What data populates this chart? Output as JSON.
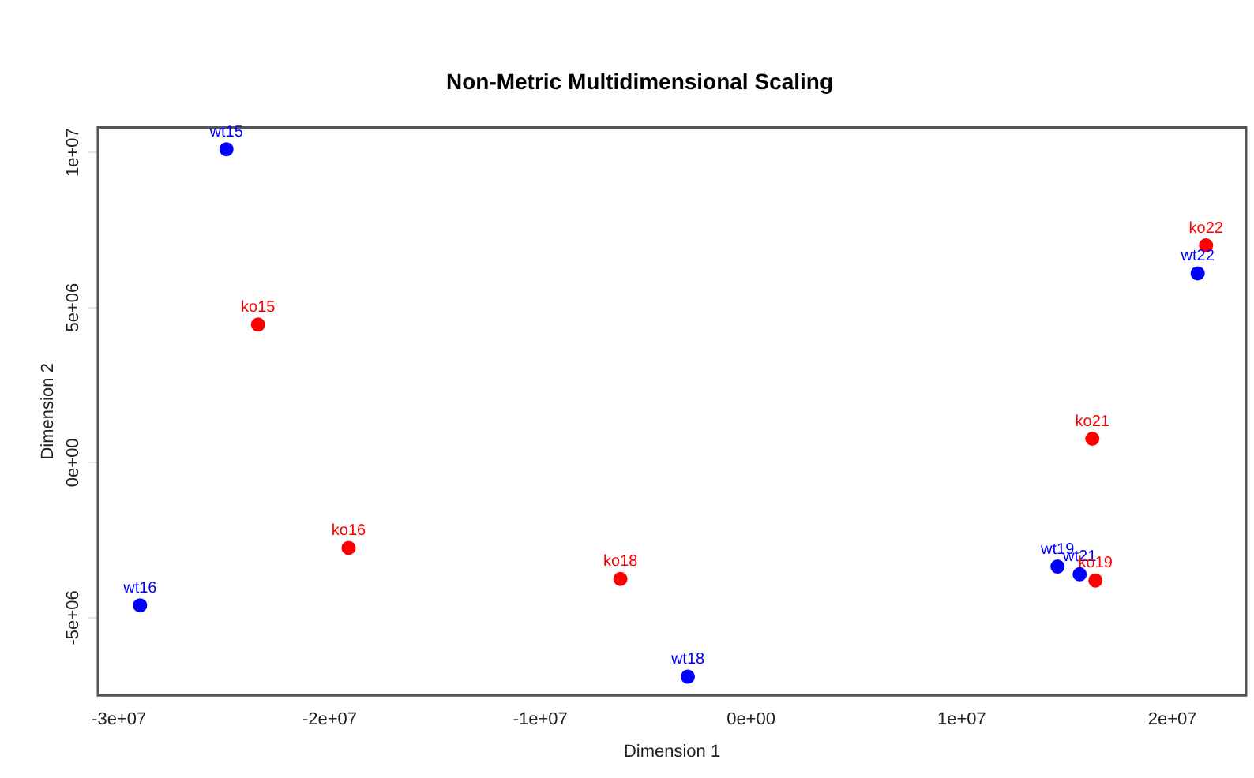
{
  "chart_data": {
    "type": "scatter",
    "title": "Non-Metric Multidimensional Scaling",
    "xlabel": "Dimension 1",
    "ylabel": "Dimension 2",
    "series": [
      {
        "color": "#0000ff",
        "x": [
          -24900000.0,
          -29000000.0,
          -3000000.0,
          14550000.0,
          15600000.0,
          21200000.0
        ],
        "values": [
          10100000.0,
          -4600000.0,
          -6900000.0,
          -3350000.0,
          -3600000.0,
          6100000.0
        ]
      },
      {
        "color": "#ff0000",
        "x": [
          -23400000.0,
          -19100000.0,
          -6200000.0,
          16350000.0,
          16200000.0,
          21600000.0
        ],
        "values": [
          4450000.0,
          -2750000.0,
          -3750000.0,
          -3800000.0,
          770000.0,
          7000000.0
        ]
      }
    ],
    "annotations": [
      {
        "text": "wt15",
        "x": -24900000.0,
        "y": 10100000.0
      },
      {
        "text": "wt16",
        "x": -29000000.0,
        "y": -4600000.0
      },
      {
        "text": "wt18",
        "x": -3000000.0,
        "y": -6900000.0
      },
      {
        "text": "wt19",
        "x": 14550000.0,
        "y": -3350000.0
      },
      {
        "text": "wt21",
        "x": 15600000.0,
        "y": -3600000.0
      },
      {
        "text": "wt22",
        "x": 21200000.0,
        "y": 6100000.0
      },
      {
        "text": "ko15",
        "x": -23400000.0,
        "y": 4450000.0
      },
      {
        "text": "ko16",
        "x": -19100000.0,
        "y": -2750000.0
      },
      {
        "text": "ko18",
        "x": -6200000.0,
        "y": -3750000.0
      },
      {
        "text": "ko19",
        "x": 16350000.0,
        "y": -3800000.0
      },
      {
        "text": "ko21",
        "x": 16200000.0,
        "y": 770000.0
      },
      {
        "text": "ko22",
        "x": 21600000.0,
        "y": 7000000.0
      }
    ],
    "xlim": [
      -31000000.0,
      23500000.0
    ],
    "ylim": [
      -7500000.0,
      10800000.0
    ],
    "xticks": [
      {
        "value": -30000000.0,
        "label": "-3e+07"
      },
      {
        "value": -20000000.0,
        "label": "-2e+07"
      },
      {
        "value": -10000000.0,
        "label": "-1e+07"
      },
      {
        "value": 0,
        "label": "0e+00"
      },
      {
        "value": 10000000.0,
        "label": "1e+07"
      },
      {
        "value": 20000000.0,
        "label": "2e+07"
      }
    ],
    "yticks": [
      {
        "value": -5000000.0,
        "label": "-5e+06"
      },
      {
        "value": 0,
        "label": "0e+00"
      },
      {
        "value": 5000000.0,
        "label": "5e+06"
      },
      {
        "value": 10000000.0,
        "label": "1e+07"
      }
    ],
    "grid": false,
    "legend": false,
    "marker": "circle"
  }
}
